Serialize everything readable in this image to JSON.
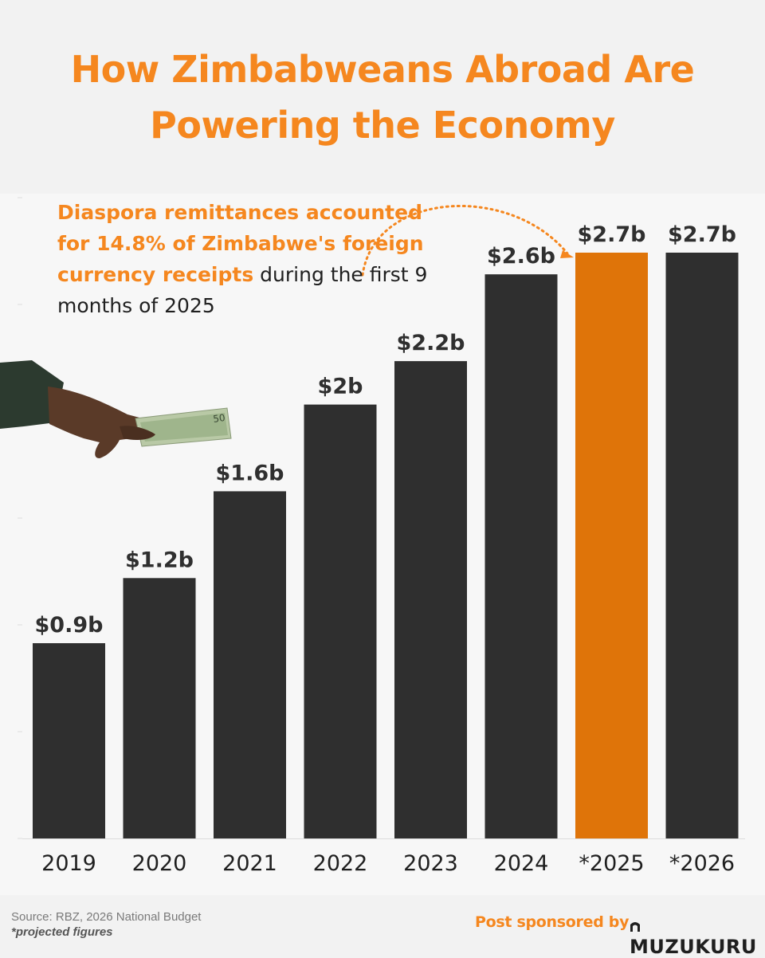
{
  "header": {
    "title_line1": "How Zimbabweans Abroad Are",
    "title_line2": "Powering the Economy"
  },
  "annotation": {
    "highlight": "Diaspora remittances accounted for 14.8% of Zimbabwe's foreign currency receipts",
    "rest": " during the first 9 months of 2025"
  },
  "footer": {
    "source": "Source: RBZ, 2026 National Budget",
    "note": "*projected figures",
    "sponsor_label": "Post sponsored by",
    "brand": "MUZUKURU"
  },
  "colors": {
    "accent": "#f5871f",
    "highlight_bar": "#df7409",
    "bar": "#2f2f2f",
    "text": "#1f1f1f"
  },
  "icons": [
    "hand-with-cash-image",
    "dotted-arrow",
    "muzukuru-logo-icon"
  ],
  "chart_data": {
    "type": "bar",
    "categories": [
      "2019",
      "2020",
      "2021",
      "2022",
      "2023",
      "2024",
      "*2025",
      "*2026"
    ],
    "values": [
      0.9,
      1.2,
      1.6,
      2.0,
      2.2,
      2.6,
      2.7,
      2.7
    ],
    "value_labels": [
      "$0.9b",
      "$1.2b",
      "$1.6b",
      "$2b",
      "$2.2b",
      "$2.6b",
      "$2.7b",
      "$2.7b"
    ],
    "highlight_category": "*2025",
    "ylim": [
      0,
      2.7
    ],
    "grid": false,
    "legend": "none"
  }
}
